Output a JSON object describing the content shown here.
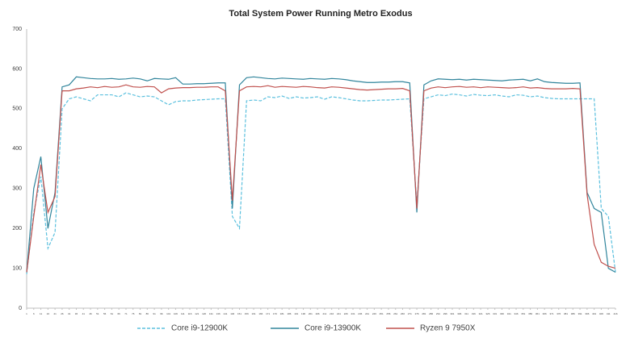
{
  "chart_data": {
    "type": "line",
    "title": "Total System Power Running Metro Exodus",
    "x": [
      1,
      6,
      11,
      16,
      21,
      26,
      31,
      36,
      41,
      46,
      51,
      56,
      61,
      66,
      71,
      76,
      81,
      86,
      91,
      96,
      101,
      106,
      111,
      116,
      121,
      126,
      131,
      136,
      141,
      146,
      151,
      156,
      161,
      166,
      171,
      176,
      181,
      186,
      191,
      196,
      201,
      206,
      211,
      216,
      221,
      226,
      231,
      236,
      241,
      246,
      251,
      256,
      261,
      266,
      271,
      276,
      281,
      286,
      291,
      296,
      301,
      306,
      311,
      316,
      321,
      326,
      331,
      336,
      341,
      346,
      351,
      356,
      361,
      366,
      371,
      376,
      381,
      386,
      391,
      396,
      401,
      406,
      411,
      416
    ],
    "xlim": [
      1,
      416
    ],
    "xticks": [
      1,
      6,
      11,
      16,
      21,
      26,
      31,
      36,
      41,
      46,
      51,
      56,
      61,
      66,
      71,
      76,
      81,
      86,
      91,
      96,
      101,
      106,
      111,
      116,
      121,
      126,
      131,
      136,
      141,
      146,
      151,
      156,
      161,
      166,
      171,
      176,
      181,
      186,
      191,
      196,
      201,
      206,
      211,
      216,
      221,
      226,
      231,
      236,
      241,
      246,
      251,
      256,
      261,
      266,
      271,
      276,
      281,
      286,
      291,
      296,
      301,
      306,
      311,
      316,
      321,
      326,
      331,
      336,
      341,
      346,
      351,
      356,
      361,
      366,
      371,
      376,
      381,
      386,
      391,
      396,
      401,
      406,
      411,
      416
    ],
    "ylim": [
      0,
      700
    ],
    "yticks": [
      0,
      100,
      200,
      300,
      400,
      500,
      600,
      700
    ],
    "grid": false,
    "legend": "bottom",
    "series": [
      {
        "name": "Core i9-12900K",
        "color": "#5bc0de",
        "dashed": true,
        "values": [
          85,
          240,
          330,
          150,
          190,
          500,
          525,
          530,
          525,
          520,
          535,
          535,
          535,
          530,
          540,
          535,
          530,
          532,
          530,
          520,
          510,
          518,
          520,
          520,
          522,
          523,
          524,
          525,
          525,
          230,
          200,
          520,
          522,
          520,
          530,
          528,
          532,
          526,
          530,
          527,
          528,
          530,
          524,
          530,
          528,
          525,
          522,
          520,
          520,
          521,
          522,
          522,
          523,
          524,
          525,
          260,
          525,
          530,
          535,
          533,
          537,
          535,
          532,
          536,
          534,
          533,
          535,
          532,
          530,
          535,
          534,
          530,
          532,
          528,
          526,
          525,
          525,
          525,
          525,
          525,
          525,
          250,
          230,
          90
        ]
      },
      {
        "name": "Core i9-13900K",
        "color": "#31859c",
        "dashed": false,
        "values": [
          90,
          300,
          380,
          200,
          290,
          555,
          560,
          580,
          578,
          576,
          575,
          575,
          576,
          574,
          575,
          577,
          575,
          570,
          576,
          575,
          574,
          578,
          562,
          562,
          563,
          563,
          564,
          565,
          565,
          250,
          560,
          578,
          580,
          578,
          576,
          575,
          577,
          576,
          575,
          574,
          576,
          575,
          574,
          576,
          575,
          573,
          570,
          568,
          566,
          566,
          567,
          567,
          568,
          568,
          565,
          240,
          560,
          570,
          575,
          574,
          573,
          574,
          572,
          574,
          573,
          572,
          571,
          570,
          572,
          573,
          574,
          570,
          575,
          568,
          566,
          565,
          564,
          564,
          565,
          290,
          250,
          240,
          100,
          90
        ]
      },
      {
        "name": "Ryzen 9 7950X",
        "color": "#c0504d",
        "dashed": false,
        "values": [
          90,
          230,
          360,
          240,
          280,
          545,
          545,
          550,
          552,
          555,
          553,
          556,
          554,
          555,
          560,
          555,
          554,
          556,
          555,
          540,
          550,
          552,
          553,
          553,
          554,
          554,
          555,
          555,
          545,
          270,
          545,
          555,
          556,
          555,
          558,
          554,
          556,
          555,
          554,
          556,
          555,
          553,
          552,
          555,
          554,
          552,
          550,
          548,
          547,
          548,
          549,
          550,
          550,
          551,
          545,
          250,
          545,
          552,
          555,
          553,
          555,
          556,
          554,
          555,
          553,
          555,
          554,
          553,
          552,
          553,
          555,
          552,
          553,
          551,
          550,
          550,
          550,
          551,
          550,
          285,
          160,
          115,
          105,
          100
        ]
      }
    ]
  }
}
